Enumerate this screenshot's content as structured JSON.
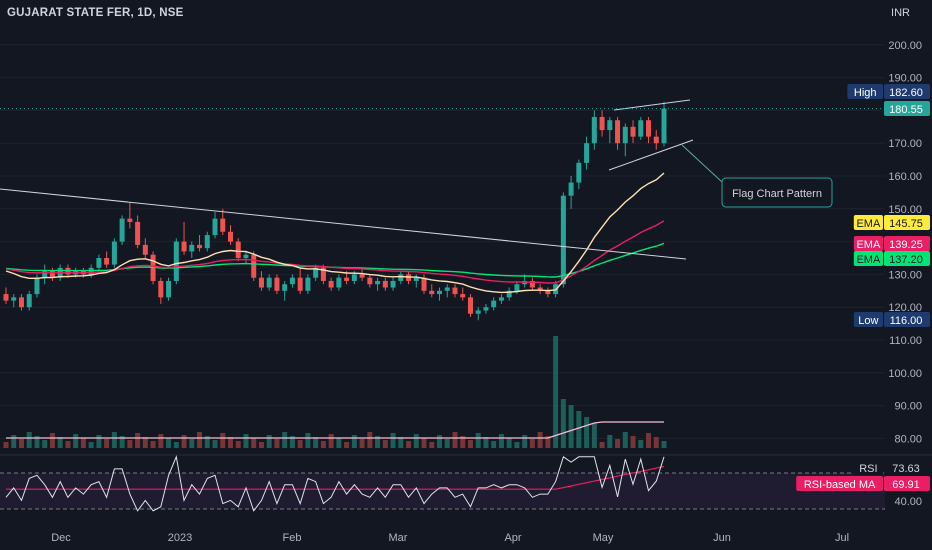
{
  "header": {
    "symbol_title": "GUJARAT STATE FER, 1D, NSE",
    "currency": "INR"
  },
  "annotation": {
    "text": "Flag Chart Pattern"
  },
  "badges": {
    "high": {
      "label": "High",
      "value": "182.60"
    },
    "last": {
      "value": "180.55"
    },
    "low": {
      "label": "Low",
      "value": "116.00"
    },
    "ema1": {
      "label": "EMA",
      "value": "145.75",
      "color": "#ffeb3b"
    },
    "ema2": {
      "label": "EMA",
      "value": "139.25",
      "color": "#e91e63"
    },
    "ema3": {
      "label": "EMA",
      "value": "137.20",
      "color": "#00e676"
    },
    "rsi": {
      "label": "RSI",
      "value": "73.63"
    },
    "rsi_ma": {
      "label": "RSI-based MA",
      "value": "69.91",
      "color": "#e91e63"
    }
  },
  "colors": {
    "up": "#26a69a",
    "down": "#ef5350",
    "background": "#131722",
    "ema_short": "#ffeb3b",
    "ema_mid": "#e91e63",
    "ema_long": "#00e676",
    "sma_light": "#ffe0b2"
  },
  "chart_data": {
    "type": "candlestick",
    "ylim": [
      75,
      210
    ],
    "y_ticks": [
      "200.00",
      "190.00",
      "180.00",
      "170.00",
      "160.00",
      "150.00",
      "140.00",
      "130.00",
      "120.00",
      "110.00",
      "100.00",
      "90.00",
      "80.00"
    ],
    "rsi_ticks": [
      "40.00"
    ],
    "x_labels": [
      "Dec",
      "2023",
      "Feb",
      "Mar",
      "Apr",
      "May",
      "Jun",
      "Jul"
    ],
    "candles": [
      {
        "o": 124,
        "h": 126,
        "l": 121,
        "c": 122
      },
      {
        "o": 122,
        "h": 124,
        "l": 120,
        "c": 123
      },
      {
        "o": 123,
        "h": 124,
        "l": 119,
        "c": 120
      },
      {
        "o": 120,
        "h": 125,
        "l": 119,
        "c": 124
      },
      {
        "o": 124,
        "h": 130,
        "l": 123,
        "c": 129
      },
      {
        "o": 129,
        "h": 133,
        "l": 127,
        "c": 131
      },
      {
        "o": 131,
        "h": 132,
        "l": 128,
        "c": 129
      },
      {
        "o": 129,
        "h": 133,
        "l": 128,
        "c": 132
      },
      {
        "o": 132,
        "h": 133,
        "l": 129,
        "c": 130
      },
      {
        "o": 130,
        "h": 132,
        "l": 129,
        "c": 131
      },
      {
        "o": 131,
        "h": 132,
        "l": 129,
        "c": 130
      },
      {
        "o": 130,
        "h": 133,
        "l": 129,
        "c": 132
      },
      {
        "o": 132,
        "h": 136,
        "l": 131,
        "c": 135
      },
      {
        "o": 135,
        "h": 137,
        "l": 132,
        "c": 133
      },
      {
        "o": 133,
        "h": 141,
        "l": 132,
        "c": 140
      },
      {
        "o": 140,
        "h": 148,
        "l": 139,
        "c": 147
      },
      {
        "o": 147,
        "h": 152,
        "l": 144,
        "c": 146
      },
      {
        "o": 146,
        "h": 148,
        "l": 138,
        "c": 139
      },
      {
        "o": 139,
        "h": 141,
        "l": 135,
        "c": 136
      },
      {
        "o": 136,
        "h": 137,
        "l": 127,
        "c": 128
      },
      {
        "o": 128,
        "h": 129,
        "l": 121,
        "c": 123
      },
      {
        "o": 123,
        "h": 129,
        "l": 122,
        "c": 128
      },
      {
        "o": 128,
        "h": 141,
        "l": 127,
        "c": 140
      },
      {
        "o": 140,
        "h": 146,
        "l": 136,
        "c": 137
      },
      {
        "o": 137,
        "h": 140,
        "l": 135,
        "c": 139
      },
      {
        "o": 139,
        "h": 142,
        "l": 137,
        "c": 138
      },
      {
        "o": 138,
        "h": 143,
        "l": 137,
        "c": 142
      },
      {
        "o": 142,
        "h": 149,
        "l": 141,
        "c": 147
      },
      {
        "o": 147,
        "h": 150,
        "l": 142,
        "c": 143
      },
      {
        "o": 143,
        "h": 145,
        "l": 139,
        "c": 140
      },
      {
        "o": 140,
        "h": 141,
        "l": 134,
        "c": 135
      },
      {
        "o": 135,
        "h": 137,
        "l": 133,
        "c": 136
      },
      {
        "o": 136,
        "h": 137,
        "l": 128,
        "c": 129
      },
      {
        "o": 129,
        "h": 131,
        "l": 125,
        "c": 126
      },
      {
        "o": 126,
        "h": 130,
        "l": 125,
        "c": 129
      },
      {
        "o": 129,
        "h": 130,
        "l": 124,
        "c": 125
      },
      {
        "o": 125,
        "h": 128,
        "l": 122,
        "c": 127
      },
      {
        "o": 127,
        "h": 130,
        "l": 126,
        "c": 129
      },
      {
        "o": 129,
        "h": 132,
        "l": 124,
        "c": 125
      },
      {
        "o": 125,
        "h": 130,
        "l": 124,
        "c": 129
      },
      {
        "o": 129,
        "h": 133,
        "l": 128,
        "c": 132
      },
      {
        "o": 132,
        "h": 133,
        "l": 127,
        "c": 128
      },
      {
        "o": 128,
        "h": 129,
        "l": 125,
        "c": 126
      },
      {
        "o": 126,
        "h": 130,
        "l": 125,
        "c": 129
      },
      {
        "o": 129,
        "h": 131,
        "l": 127,
        "c": 128
      },
      {
        "o": 128,
        "h": 131,
        "l": 127,
        "c": 130
      },
      {
        "o": 130,
        "h": 132,
        "l": 128,
        "c": 129
      },
      {
        "o": 129,
        "h": 130,
        "l": 126,
        "c": 127
      },
      {
        "o": 127,
        "h": 129,
        "l": 125,
        "c": 128
      },
      {
        "o": 128,
        "h": 129,
        "l": 125,
        "c": 126
      },
      {
        "o": 126,
        "h": 129,
        "l": 125,
        "c": 128
      },
      {
        "o": 128,
        "h": 131,
        "l": 127,
        "c": 130
      },
      {
        "o": 130,
        "h": 131,
        "l": 127,
        "c": 128
      },
      {
        "o": 128,
        "h": 130,
        "l": 126,
        "c": 129
      },
      {
        "o": 129,
        "h": 130,
        "l": 124,
        "c": 125
      },
      {
        "o": 125,
        "h": 127,
        "l": 123,
        "c": 124
      },
      {
        "o": 124,
        "h": 126,
        "l": 122,
        "c": 125
      },
      {
        "o": 125,
        "h": 127,
        "l": 123,
        "c": 126
      },
      {
        "o": 126,
        "h": 127,
        "l": 123,
        "c": 124
      },
      {
        "o": 124,
        "h": 126,
        "l": 122,
        "c": 123
      },
      {
        "o": 123,
        "h": 124,
        "l": 117,
        "c": 118
      },
      {
        "o": 118,
        "h": 120,
        "l": 116,
        "c": 119
      },
      {
        "o": 119,
        "h": 121,
        "l": 118,
        "c": 120
      },
      {
        "o": 120,
        "h": 123,
        "l": 119,
        "c": 122
      },
      {
        "o": 122,
        "h": 124,
        "l": 121,
        "c": 123
      },
      {
        "o": 123,
        "h": 126,
        "l": 122,
        "c": 125
      },
      {
        "o": 125,
        "h": 128,
        "l": 124,
        "c": 127
      },
      {
        "o": 127,
        "h": 130,
        "l": 126,
        "c": 128
      },
      {
        "o": 128,
        "h": 129,
        "l": 125,
        "c": 126
      },
      {
        "o": 126,
        "h": 127,
        "l": 124,
        "c": 125
      },
      {
        "o": 125,
        "h": 126,
        "l": 123,
        "c": 124
      },
      {
        "o": 124,
        "h": 128,
        "l": 123,
        "c": 127
      },
      {
        "o": 127,
        "h": 155,
        "l": 126,
        "c": 154
      },
      {
        "o": 154,
        "h": 160,
        "l": 150,
        "c": 158
      },
      {
        "o": 158,
        "h": 165,
        "l": 156,
        "c": 164
      },
      {
        "o": 164,
        "h": 172,
        "l": 162,
        "c": 170
      },
      {
        "o": 170,
        "h": 180,
        "l": 168,
        "c": 178
      },
      {
        "o": 178,
        "h": 180,
        "l": 172,
        "c": 174
      },
      {
        "o": 174,
        "h": 178,
        "l": 170,
        "c": 177
      },
      {
        "o": 177,
        "h": 178,
        "l": 168,
        "c": 170
      },
      {
        "o": 170,
        "h": 176,
        "l": 166,
        "c": 175
      },
      {
        "o": 175,
        "h": 177,
        "l": 170,
        "c": 172
      },
      {
        "o": 172,
        "h": 178,
        "l": 171,
        "c": 177
      },
      {
        "o": 177,
        "h": 178,
        "l": 170,
        "c": 172
      },
      {
        "o": 172,
        "h": 174,
        "l": 168,
        "c": 170
      },
      {
        "o": 170,
        "h": 182.6,
        "l": 169,
        "c": 180.55
      }
    ]
  }
}
